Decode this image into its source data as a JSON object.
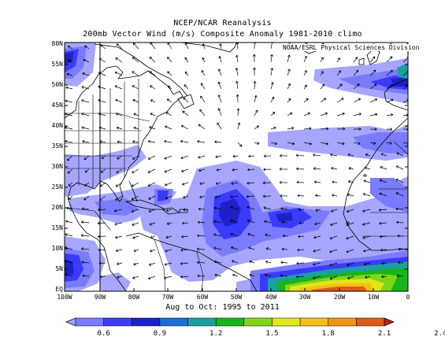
{
  "header": {
    "title": "NCEP/NCAR Reanalysis",
    "subtitle": "200mb Vector Wind (m/s) Composite Anomaly 1981-2010 climo",
    "credit": "NOAA/ESRL Physical Sciences Division"
  },
  "map": {
    "lat_labels": [
      "80N",
      "55N",
      "50N",
      "45N",
      "40N",
      "35N",
      "30N",
      "25N",
      "20N",
      "15N",
      "10N",
      "5N",
      "EQ"
    ],
    "lon_labels": [
      "100W",
      "90W",
      "80W",
      "70W",
      "60W",
      "50W",
      "40W",
      "30W",
      "20W",
      "10W",
      "0"
    ],
    "period_label": "Aug to Oct: 1995 to 2011"
  },
  "colorbar": {
    "labels": [
      "0.6",
      "0.9",
      "1.2",
      "1.5",
      "1.8",
      "2.1",
      "2.4"
    ],
    "colors": [
      "#a6a6ff",
      "#7b7bff",
      "#3b3bff",
      "#2020c8",
      "#1a6ed8",
      "#1aa0a0",
      "#19b419",
      "#7fd619",
      "#e1e619",
      "#f3c019",
      "#f09619",
      "#e05a19",
      "#c81919"
    ]
  }
}
